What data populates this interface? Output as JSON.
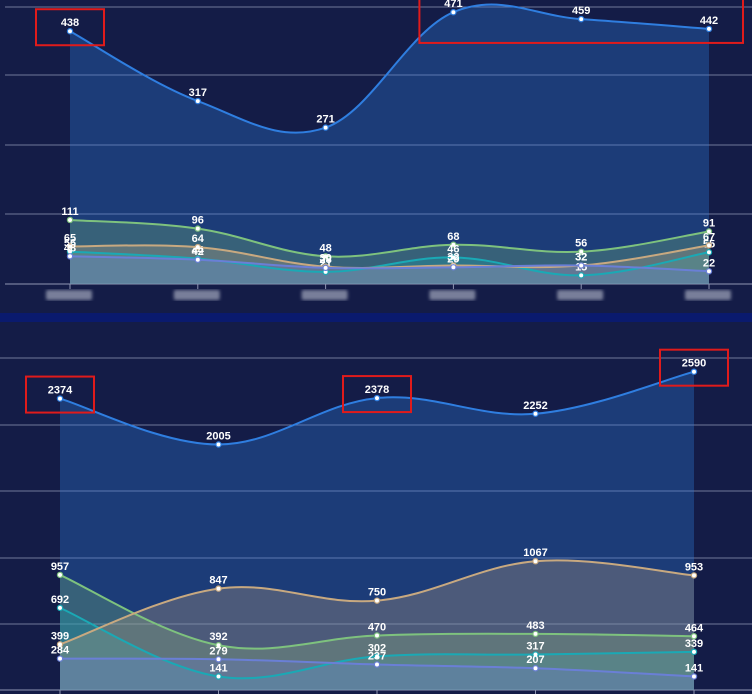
{
  "colors": {
    "background": "#141c47",
    "divider": "#0a1a6e",
    "grid": "#8f96b3",
    "highlight_box": "#e01b1b",
    "label": "#ffffff"
  },
  "chart_data": [
    {
      "type": "area",
      "categories": [
        "",
        "",
        "",
        "",
        "",
        ""
      ],
      "grid": true,
      "ylim": [
        0,
        480
      ],
      "series": [
        {
          "values": [
            438,
            317,
            271,
            471,
            459,
            442
          ],
          "color": "#2f7ee0"
        },
        {
          "values": [
            111,
            96,
            48,
            68,
            56,
            91
          ],
          "color": "#7ec27e"
        },
        {
          "values": [
            56,
            44,
            21,
            46,
            15,
            55
          ],
          "color": "#1aa9b5"
        },
        {
          "values": [
            65,
            64,
            30,
            32,
            32,
            67
          ],
          "color": "#c8a980"
        },
        {
          "values": [
            48,
            42,
            28,
            29,
            32,
            22
          ],
          "color": "#6a7fd6"
        }
      ],
      "highlighted_points": [
        {
          "series": 0,
          "indices": [
            0
          ]
        },
        {
          "series": 0,
          "indices": [
            3,
            4,
            5
          ]
        }
      ]
    },
    {
      "type": "area",
      "categories": [
        "",
        "",
        "",
        "",
        ""
      ],
      "grid": true,
      "ylim": [
        0,
        2700
      ],
      "series": [
        {
          "values": [
            2374,
            2005,
            2378,
            2252,
            2590
          ],
          "color": "#2f7ee0"
        },
        {
          "values": [
            957,
            392,
            470,
            483,
            464
          ],
          "color": "#7ec27e"
        },
        {
          "values": [
            692,
            141,
            302,
            317,
            339
          ],
          "color": "#1aa9b5"
        },
        {
          "values": [
            399,
            847,
            750,
            1067,
            953
          ],
          "color": "#c8a980"
        },
        {
          "values": [
            284,
            279,
            237,
            207,
            141
          ],
          "color": "#6a7fd6"
        }
      ],
      "highlighted_points": [
        {
          "series": 0,
          "indices": [
            0
          ]
        },
        {
          "series": 0,
          "indices": [
            2
          ]
        },
        {
          "series": 0,
          "indices": [
            4
          ]
        }
      ]
    }
  ]
}
